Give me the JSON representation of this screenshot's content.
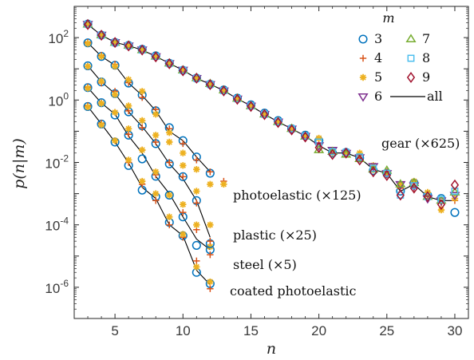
{
  "chart_data": {
    "type": "scatter",
    "xlabel": "n",
    "ylabel": "p(n|m)",
    "xlim": [
      2,
      31
    ],
    "ylim": [
      1e-07,
      1000
    ],
    "yscale": "log",
    "xticks": [
      5,
      10,
      15,
      20,
      25,
      30
    ],
    "yticks": [
      1e-06,
      0.0001,
      0.01,
      1,
      100
    ],
    "ytick_labels": [
      {
        "base": "10",
        "exp": "-6"
      },
      {
        "base": "10",
        "exp": "-4"
      },
      {
        "base": "10",
        "exp": "-2"
      },
      {
        "base": "10",
        "exp": "0"
      },
      {
        "base": "10",
        "exp": "2"
      }
    ],
    "legend": {
      "title": "m",
      "position": "top-right",
      "entries": [
        {
          "label": "3",
          "marker": "circle",
          "color": "#0072BD"
        },
        {
          "label": "4",
          "marker": "plus",
          "color": "#D95319"
        },
        {
          "label": "5",
          "marker": "asterisk",
          "color": "#EDB120"
        },
        {
          "label": "6",
          "marker": "triangle-down",
          "color": "#7E2F8E"
        },
        {
          "label": "7",
          "marker": "triangle-up",
          "color": "#77AC30"
        },
        {
          "label": "8",
          "marker": "square",
          "color": "#4DBEEE"
        },
        {
          "label": "9",
          "marker": "diamond",
          "color": "#A2142F"
        },
        {
          "label": "all",
          "marker": "line",
          "color": "#000000"
        }
      ]
    },
    "annotations": [
      "gear (×625)",
      "photoelastic (×125)",
      "plastic (×25)",
      "steel (×5)",
      "coated photoelastic"
    ],
    "series": [
      {
        "group": "coated photoelastic",
        "line": {
          "x": [
            3,
            4,
            5,
            6,
            7,
            8,
            9,
            10,
            11,
            12
          ],
          "y": [
            0.62,
            0.17,
            0.045,
            0.0095,
            0.0016,
            0.0007,
            0.0001,
            4.5e-05,
            3.5e-06,
            1.2e-06
          ]
        },
        "points": [
          {
            "m": "3",
            "x": [
              3,
              4,
              5,
              6,
              7,
              8,
              9,
              10,
              11,
              12
            ],
            "y": [
              0.62,
              0.17,
              0.045,
              0.008,
              0.0013,
              0.0008,
              0.00012,
              4.5e-05,
              3e-06,
              1.3e-06
            ]
          },
          {
            "m": "4",
            "x": [
              3,
              4,
              5,
              6,
              7,
              8,
              9,
              10,
              11,
              12
            ],
            "y": [
              0.65,
              0.18,
              0.05,
              0.01,
              0.002,
              0.0006,
              0.0001,
              4e-05,
              7e-06,
              9e-07
            ]
          },
          {
            "m": "5",
            "x": [
              3,
              4,
              5,
              6,
              7,
              8,
              9,
              10,
              11,
              12
            ],
            "y": [
              0.6,
              0.16,
              0.05,
              0.012,
              0.0025,
              0.001,
              0.00018,
              5e-05,
              4.5e-06,
              1.5e-06
            ]
          }
        ]
      },
      {
        "group": "steel (×5)",
        "line": {
          "x": [
            3,
            4,
            5,
            6,
            7,
            8,
            9,
            10,
            11,
            12
          ],
          "y": [
            2.5,
            0.8,
            0.35,
            0.07,
            0.02,
            0.0036,
            0.001,
            0.00018,
            3.5e-05,
            1.6e-05
          ]
        },
        "points": [
          {
            "m": "3",
            "x": [
              3,
              4,
              5,
              6,
              7,
              8,
              9,
              10,
              11,
              12
            ],
            "y": [
              2.5,
              0.82,
              0.33,
              0.075,
              0.013,
              0.0036,
              0.0009,
              0.00018,
              2.2e-05,
              1.6e-05
            ]
          },
          {
            "m": "4",
            "x": [
              3,
              4,
              5,
              6,
              7,
              8,
              9,
              10,
              11,
              12
            ],
            "y": [
              2.6,
              0.8,
              0.4,
              0.08,
              0.025,
              0.004,
              0.0009,
              0.00025,
              7e-05,
              1.1e-05
            ]
          },
          {
            "m": "5",
            "x": [
              3,
              4,
              5,
              6,
              7,
              8,
              9,
              10,
              11,
              12
            ],
            "y": [
              2.4,
              0.78,
              0.4,
              0.12,
              0.025,
              0.005,
              0.0009,
              0.00045,
              0.0001,
              2e-05
            ]
          }
        ]
      },
      {
        "group": "plastic (×25)",
        "line": {
          "x": [
            3,
            4,
            5,
            6,
            7,
            8,
            9,
            10,
            11,
            12
          ],
          "y": [
            12.5,
            3.8,
            1.6,
            0.42,
            0.14,
            0.04,
            0.009,
            0.003,
            0.0006,
            4e-05
          ]
        },
        "points": [
          {
            "m": "3",
            "x": [
              3,
              4,
              5,
              6,
              7,
              8,
              9,
              10,
              11,
              12
            ],
            "y": [
              12.5,
              3.8,
              1.6,
              0.42,
              0.15,
              0.04,
              0.009,
              0.0035,
              0.0006,
              2.5e-05
            ]
          },
          {
            "m": "4",
            "x": [
              3,
              4,
              5,
              6,
              7,
              8,
              9,
              10,
              11,
              12
            ],
            "y": [
              12,
              3.5,
              1.9,
              0.45,
              0.13,
              0.045,
              0.01,
              0.0035,
              0.0005,
              3e-05
            ]
          },
          {
            "m": "5",
            "x": [
              3,
              4,
              5,
              6,
              7,
              8,
              9,
              10,
              11,
              12
            ],
            "y": [
              12,
              4,
              1.5,
              0.65,
              0.22,
              0.075,
              0.045,
              0.008,
              0.0012,
              0.0001
            ]
          }
        ]
      },
      {
        "group": "photoelastic (×125)",
        "line": {
          "x": [
            3,
            4,
            5,
            6,
            7,
            8,
            9,
            10,
            11,
            12
          ],
          "y": [
            68,
            25,
            13,
            3.5,
            1.4,
            0.45,
            0.1,
            0.05,
            0.015,
            0.005
          ]
        },
        "points": [
          {
            "m": "3",
            "x": [
              3,
              4,
              5,
              6,
              7,
              8,
              9,
              10,
              11,
              12
            ],
            "y": [
              68,
              25,
              13,
              3.5,
              1.45,
              0.45,
              0.13,
              0.05,
              0.015,
              0.0045
            ]
          },
          {
            "m": "4",
            "x": [
              3,
              4,
              5,
              6,
              7,
              8,
              9,
              10,
              11,
              12,
              13
            ],
            "y": [
              70,
              27,
              14,
              3.6,
              1.2,
              0.5,
              0.12,
              0.04,
              0.012,
              0.005,
              0.0025
            ]
          },
          {
            "m": "5",
            "x": [
              3,
              4,
              5,
              6,
              7,
              8,
              9,
              10,
              11,
              12,
              13
            ],
            "y": [
              65,
              25,
              12,
              4.5,
              1.9,
              0.35,
              0.09,
              0.02,
              0.006,
              0.002,
              0.002
            ]
          }
        ]
      },
      {
        "group": "gear (×625)",
        "line": {
          "x": [
            3,
            4,
            5,
            6,
            7,
            8,
            9,
            10,
            11,
            12,
            13,
            14,
            15,
            16,
            17,
            18,
            19,
            20,
            21,
            22,
            23,
            24,
            25,
            26,
            27,
            28,
            29,
            30
          ],
          "y": [
            260,
            120,
            70,
            55,
            40,
            25,
            15,
            9,
            5,
            3.2,
            2,
            1.1,
            0.65,
            0.35,
            0.2,
            0.12,
            0.07,
            0.035,
            0.02,
            0.02,
            0.014,
            0.006,
            0.0045,
            0.0012,
            0.002,
            0.0008,
            0.0006,
            0.0006
          ]
        },
        "points": [
          {
            "m": "3",
            "x": [
              3,
              4,
              5,
              6,
              7,
              8,
              9,
              10,
              11,
              12,
              13,
              14,
              15,
              16,
              17,
              18,
              19,
              20,
              21,
              22,
              23,
              24,
              25,
              26,
              27,
              28,
              29,
              30
            ],
            "y": [
              270,
              120,
              70,
              56,
              42,
              26,
              15,
              9,
              5,
              3.2,
              2.1,
              1.15,
              0.7,
              0.38,
              0.22,
              0.12,
              0.075,
              0.05,
              0.02,
              0.021,
              0.014,
              0.0055,
              0.0045,
              0.0012,
              0.0022,
              0.0009,
              0.0007,
              0.00025
            ]
          },
          {
            "m": "4",
            "x": [
              3,
              4,
              5,
              6,
              7,
              8,
              9,
              10,
              11,
              12,
              13,
              14,
              15,
              16,
              17,
              18,
              19,
              20,
              21,
              22,
              23,
              24,
              25,
              26,
              27,
              28,
              29,
              30
            ],
            "y": [
              280,
              125,
              72,
              55,
              40,
              25,
              15,
              9.5,
              5.2,
              3.2,
              1.9,
              1.1,
              0.65,
              0.36,
              0.19,
              0.12,
              0.065,
              0.04,
              0.022,
              0.02,
              0.014,
              0.006,
              0.005,
              0.0015,
              0.0015,
              0.0008,
              0.0005,
              0.0006
            ]
          },
          {
            "m": "5",
            "x": [
              3,
              4,
              5,
              6,
              7,
              8,
              9,
              10,
              11,
              12,
              13,
              14,
              15,
              16,
              17,
              18,
              19,
              20,
              21,
              22,
              23,
              24,
              25,
              26,
              27,
              28,
              29,
              30
            ],
            "y": [
              255,
              118,
              68,
              54,
              39,
              24,
              14,
              8.8,
              4.9,
              3.1,
              2,
              1.1,
              0.66,
              0.34,
              0.19,
              0.11,
              0.07,
              0.06,
              0.02,
              0.019,
              0.02,
              0.008,
              0.004,
              0.002,
              0.0025,
              0.0011,
              0.0003,
              0.0007
            ]
          },
          {
            "m": "6",
            "x": [
              3,
              4,
              5,
              6,
              7,
              8,
              9,
              10,
              11,
              12,
              13,
              14,
              15,
              16,
              17,
              18,
              19,
              20,
              21,
              22,
              23,
              24,
              25,
              26,
              27,
              28,
              29,
              30
            ],
            "y": [
              270,
              122,
              71,
              55,
              41,
              25,
              15,
              9.2,
              5,
              3.2,
              2,
              1.1,
              0.65,
              0.35,
              0.2,
              0.12,
              0.07,
              0.035,
              0.025,
              0.02,
              0.0145,
              0.0075,
              0.0045,
              0.002,
              0.0018,
              0.0007,
              0.0006,
              0.0009
            ]
          },
          {
            "m": "7",
            "x": [
              3,
              4,
              5,
              6,
              7,
              8,
              9,
              10,
              11,
              12,
              13,
              14,
              15,
              16,
              17,
              18,
              19,
              20,
              21,
              22,
              23,
              24,
              25,
              26,
              27,
              28,
              29,
              30
            ],
            "y": [
              265,
              121,
              69,
              56,
              40,
              25,
              15,
              9,
              5.1,
              3.3,
              2.05,
              1.12,
              0.64,
              0.35,
              0.2,
              0.12,
              0.068,
              0.025,
              0.022,
              0.018,
              0.013,
              0.006,
              0.0055,
              0.002,
              0.0022,
              0.0008,
              0.0006,
              0.0011
            ]
          },
          {
            "m": "8",
            "x": [
              3,
              4,
              5,
              6,
              7,
              8,
              9,
              10,
              11,
              12,
              13,
              14,
              15,
              16,
              17,
              18,
              19,
              20,
              21,
              22,
              23,
              24,
              25,
              26,
              27,
              28,
              29,
              30
            ],
            "y": [
              268,
              120,
              70,
              55,
              40,
              25,
              15,
              9,
              5,
              3.2,
              2,
              1.1,
              0.65,
              0.35,
              0.2,
              0.12,
              0.07,
              0.045,
              0.022,
              0.021,
              0.015,
              0.0065,
              0.0045,
              0.0009,
              0.0018,
              0.0008,
              0.00065,
              0.0012
            ]
          },
          {
            "m": "9",
            "x": [
              3,
              4,
              5,
              6,
              7,
              8,
              9,
              10,
              11,
              12,
              13,
              14,
              15,
              16,
              17,
              18,
              19,
              20,
              21,
              22,
              23,
              24,
              25,
              26,
              27,
              28,
              29,
              30
            ],
            "y": [
              262,
              119,
              70,
              54,
              40,
              24,
              14.5,
              8.6,
              5,
              3.1,
              1.95,
              1.05,
              0.62,
              0.34,
              0.19,
              0.11,
              0.065,
              0.03,
              0.018,
              0.02,
              0.012,
              0.005,
              0.0038,
              0.0009,
              0.0015,
              0.0008,
              0.00045,
              0.0019
            ]
          }
        ]
      }
    ]
  }
}
